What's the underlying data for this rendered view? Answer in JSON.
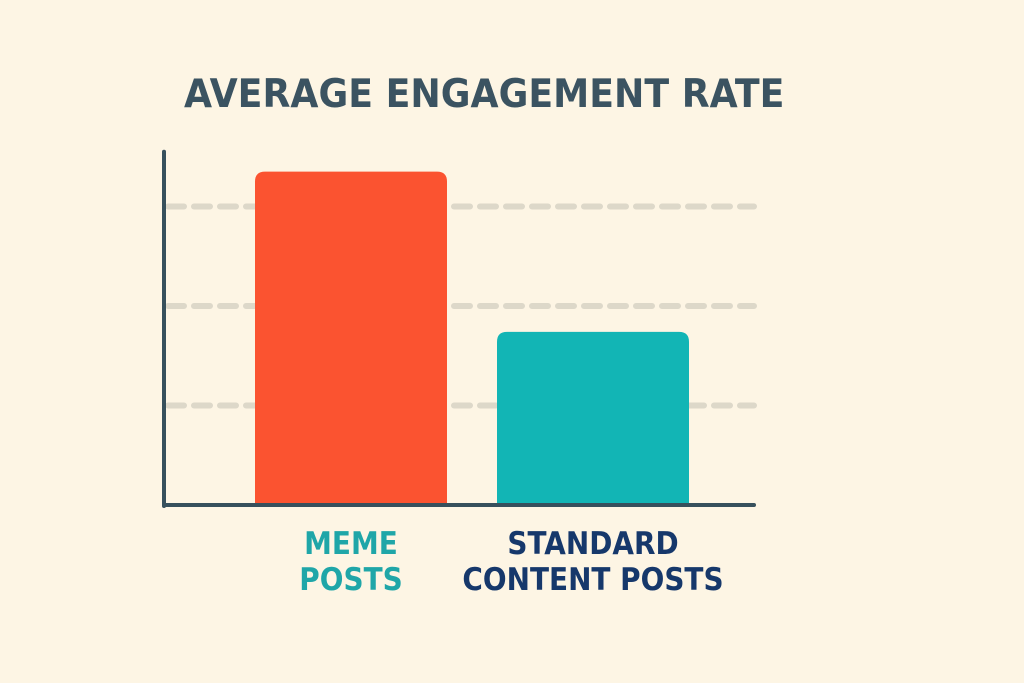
{
  "chart_data": {
    "type": "bar",
    "title": "AVERAGE ENGAGEMENT RATE",
    "xlabel": "",
    "ylabel": "",
    "categories": [
      "MEME POSTS",
      "STANDARD CONTENT POSTS"
    ],
    "category_lines": [
      [
        "MEME",
        "POSTS"
      ],
      [
        "STANDARD",
        "CONTENT POSTS"
      ]
    ],
    "values": [
      3.35,
      1.74
    ],
    "ylim": [
      0,
      3.55
    ],
    "gridlines": [
      1,
      2,
      3
    ],
    "grid": true,
    "y_tick_labels_shown": false,
    "legend": "none",
    "colors": {
      "bars": [
        "#fb5330",
        "#12b5b5"
      ],
      "labels": [
        "#1fa6a8",
        "#16386b"
      ],
      "title": "#3b5361",
      "axis": "#37505c",
      "grid": "#ddd8c9",
      "background": "#fdf5e4"
    }
  }
}
